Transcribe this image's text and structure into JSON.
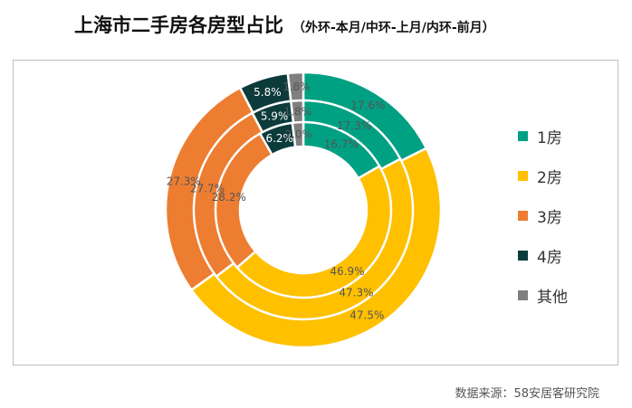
{
  "title": "上海市二手房各房型占比",
  "subtitle": "（外环-本月/中环-上月/内环-前月）",
  "source": "数据来源：58安居客研究院",
  "chart_data": {
    "type": "donut",
    "categories": [
      "1房",
      "2房",
      "3房",
      "4房",
      "其他"
    ],
    "colors": [
      "#00a083",
      "#ffc000",
      "#ed7d31",
      "#0d3b3c",
      "#7f7f7f"
    ],
    "label_colors": [
      "#555555",
      "#555555",
      "#555555",
      "#ffffff",
      "#555555"
    ],
    "rings": [
      {
        "name": "外环-本月",
        "values": [
          17.6,
          47.5,
          27.3,
          5.8,
          1.8
        ]
      },
      {
        "name": "中环-上月",
        "values": [
          17.3,
          47.3,
          27.7,
          5.9,
          1.8
        ]
      },
      {
        "name": "内环-前月",
        "values": [
          16.7,
          46.9,
          28.2,
          6.2,
          2.0
        ]
      }
    ],
    "labels": [
      [
        "17.6%",
        "47.5%",
        "27.3%",
        "5.8%",
        "1.8%"
      ],
      [
        "17.3%",
        "47.3%",
        "27.7%",
        "5.9%",
        "1.8%"
      ],
      [
        "16.7%",
        "46.9%",
        "28.2%",
        "6.2%",
        "2.0%"
      ]
    ],
    "legend_position": "right"
  }
}
